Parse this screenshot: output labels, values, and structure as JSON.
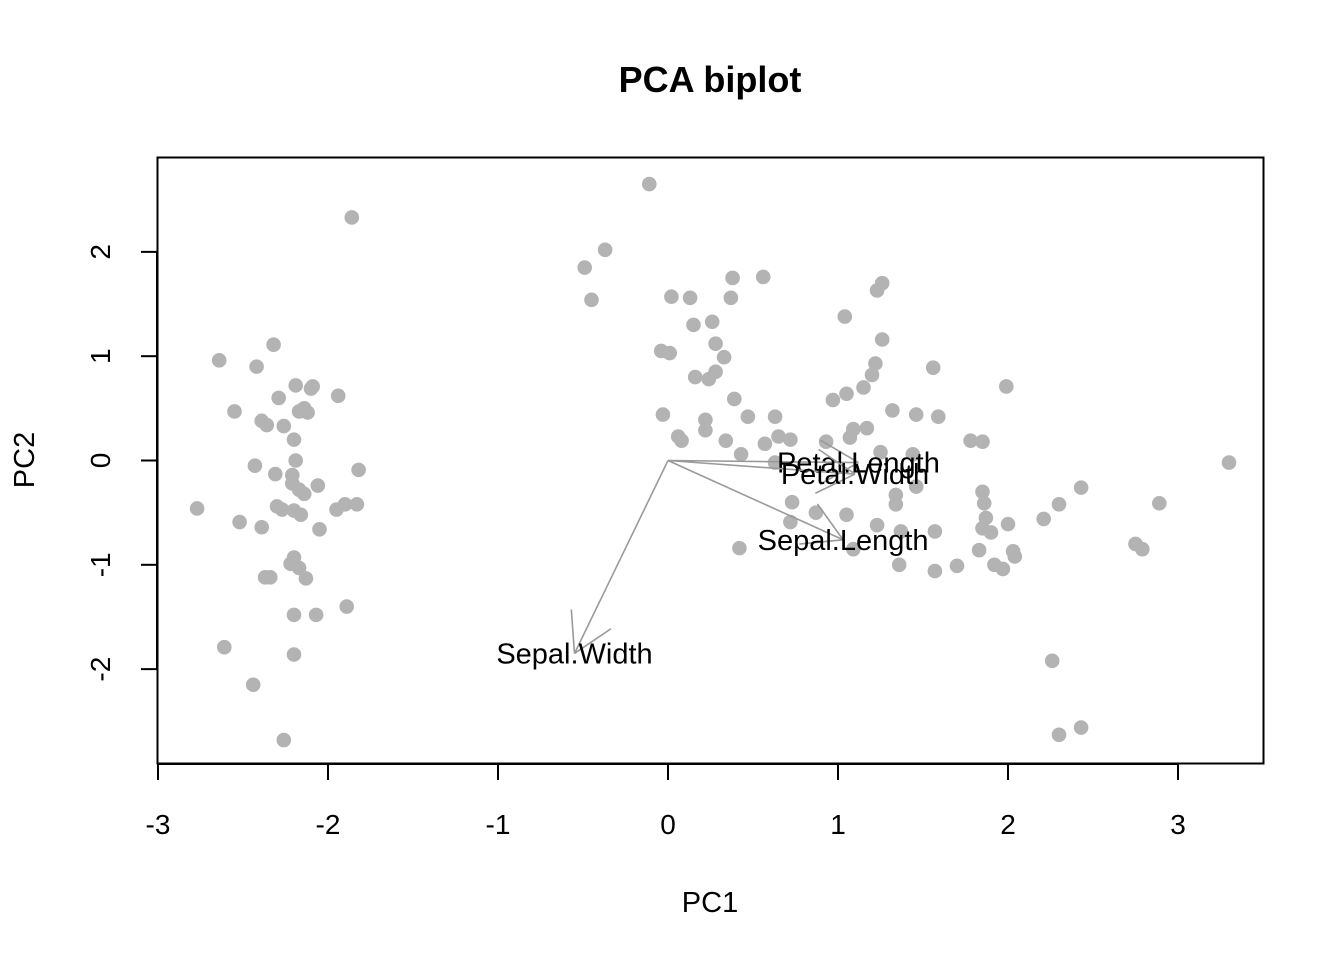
{
  "chart_data": {
    "type": "scatter",
    "title": "PCA biplot",
    "xlabel": "PC1",
    "ylabel": "PC2",
    "xlim": [
      -3,
      3.5
    ],
    "ylim": [
      -2.9,
      2.9
    ],
    "xticks": [
      "-3",
      "-2",
      "-1",
      "0",
      "1",
      "2",
      "3"
    ],
    "yticks": [
      "-2",
      "-1",
      "0",
      "1",
      "2"
    ],
    "point_color": "#b3b3b3",
    "arrow_color": "#9a9a9a",
    "grid": false,
    "legend": "none",
    "points": [
      [
        -1.86,
        2.33
      ],
      [
        -2.64,
        0.96
      ],
      [
        -2.42,
        0.9
      ],
      [
        -2.55,
        0.47
      ],
      [
        -2.32,
        1.11
      ],
      [
        -2.39,
        0.38
      ],
      [
        -2.36,
        0.34
      ],
      [
        -2.29,
        0.6
      ],
      [
        -2.19,
        0.72
      ],
      [
        -2.17,
        0.47
      ],
      [
        -2.1,
        0.69
      ],
      [
        -2.09,
        0.71
      ],
      [
        -2.12,
        0.46
      ],
      [
        -2.14,
        0.5
      ],
      [
        -1.94,
        0.62
      ],
      [
        -2.2,
        0.2
      ],
      [
        -2.26,
        0.33
      ],
      [
        -2.43,
        -0.05
      ],
      [
        -2.31,
        -0.13
      ],
      [
        -2.19,
        0.0
      ],
      [
        -2.21,
        -0.14
      ],
      [
        -2.21,
        -0.22
      ],
      [
        -2.17,
        -0.28
      ],
      [
        -2.14,
        -0.32
      ],
      [
        -2.16,
        -0.52
      ],
      [
        -2.27,
        -0.47
      ],
      [
        -2.3,
        -0.44
      ],
      [
        -2.2,
        -0.48
      ],
      [
        -2.06,
        -0.24
      ],
      [
        -2.05,
        -0.66
      ],
      [
        -1.95,
        -0.47
      ],
      [
        -1.9,
        -0.42
      ],
      [
        -1.83,
        -0.42
      ],
      [
        -1.82,
        -0.09
      ],
      [
        -2.77,
        -0.46
      ],
      [
        -2.52,
        -0.59
      ],
      [
        -2.39,
        -0.64
      ],
      [
        -2.2,
        -0.93
      ],
      [
        -2.22,
        -0.99
      ],
      [
        -2.17,
        -1.03
      ],
      [
        -2.13,
        -1.13
      ],
      [
        -2.37,
        -1.12
      ],
      [
        -2.34,
        -1.12
      ],
      [
        -2.2,
        -1.48
      ],
      [
        -2.07,
        -1.48
      ],
      [
        -1.89,
        -1.4
      ],
      [
        -2.61,
        -1.79
      ],
      [
        -2.2,
        -1.86
      ],
      [
        -2.44,
        -2.15
      ],
      [
        -2.26,
        -2.68
      ],
      [
        -0.11,
        2.65
      ],
      [
        -0.37,
        2.02
      ],
      [
        -0.49,
        1.85
      ],
      [
        -0.45,
        1.54
      ],
      [
        0.02,
        1.57
      ],
      [
        0.13,
        1.56
      ],
      [
        0.38,
        1.75
      ],
      [
        0.56,
        1.76
      ],
      [
        0.37,
        1.56
      ],
      [
        0.15,
        1.3
      ],
      [
        0.26,
        1.33
      ],
      [
        0.28,
        1.12
      ],
      [
        0.33,
        0.99
      ],
      [
        -0.04,
        1.05
      ],
      [
        0.01,
        1.03
      ],
      [
        0.16,
        0.8
      ],
      [
        0.24,
        0.78
      ],
      [
        0.28,
        0.85
      ],
      [
        0.39,
        0.59
      ],
      [
        0.47,
        0.42
      ],
      [
        0.63,
        0.42
      ],
      [
        -0.03,
        0.44
      ],
      [
        0.22,
        0.39
      ],
      [
        0.22,
        0.29
      ],
      [
        0.06,
        0.23
      ],
      [
        0.08,
        0.19
      ],
      [
        0.34,
        0.19
      ],
      [
        0.43,
        0.06
      ],
      [
        0.57,
        0.16
      ],
      [
        0.65,
        0.23
      ],
      [
        0.72,
        0.2
      ],
      [
        0.63,
        -0.02
      ],
      [
        1.04,
        1.38
      ],
      [
        1.23,
        1.63
      ],
      [
        1.26,
        1.7
      ],
      [
        1.26,
        1.16
      ],
      [
        1.22,
        0.93
      ],
      [
        1.2,
        0.82
      ],
      [
        1.15,
        0.7
      ],
      [
        1.05,
        0.64
      ],
      [
        0.97,
        0.58
      ],
      [
        1.56,
        0.89
      ],
      [
        1.32,
        0.48
      ],
      [
        1.46,
        0.44
      ],
      [
        1.59,
        0.42
      ],
      [
        1.09,
        0.3
      ],
      [
        1.17,
        0.31
      ],
      [
        1.07,
        0.22
      ],
      [
        0.93,
        0.18
      ],
      [
        1.25,
        0.08
      ],
      [
        1.44,
        0.06
      ],
      [
        1.78,
        0.19
      ],
      [
        1.85,
        0.18
      ],
      [
        1.99,
        0.71
      ],
      [
        1.46,
        -0.25
      ],
      [
        1.34,
        -0.33
      ],
      [
        1.34,
        -0.42
      ],
      [
        0.73,
        -0.4
      ],
      [
        0.87,
        -0.5
      ],
      [
        1.05,
        -0.52
      ],
      [
        1.23,
        -0.62
      ],
      [
        1.37,
        -0.68
      ],
      [
        1.57,
        -0.68
      ],
      [
        0.72,
        -0.59
      ],
      [
        0.42,
        -0.84
      ],
      [
        1.09,
        -0.85
      ],
      [
        1.36,
        -1.0
      ],
      [
        1.57,
        -1.06
      ],
      [
        1.7,
        -1.01
      ],
      [
        1.85,
        -0.3
      ],
      [
        1.86,
        -0.41
      ],
      [
        1.87,
        -0.55
      ],
      [
        1.85,
        -0.65
      ],
      [
        1.9,
        -0.69
      ],
      [
        1.83,
        -0.86
      ],
      [
        2.0,
        -0.61
      ],
      [
        2.03,
        -0.87
      ],
      [
        2.04,
        -0.92
      ],
      [
        1.92,
        -1.0
      ],
      [
        1.97,
        -1.04
      ],
      [
        2.21,
        -0.56
      ],
      [
        2.3,
        -0.42
      ],
      [
        2.43,
        -0.26
      ],
      [
        2.75,
        -0.8
      ],
      [
        2.79,
        -0.85
      ],
      [
        2.89,
        -0.41
      ],
      [
        3.3,
        -0.02
      ],
      [
        2.26,
        -1.92
      ],
      [
        2.3,
        -2.63
      ],
      [
        2.43,
        -2.56
      ]
    ],
    "loadings": [
      {
        "label": "Petal.Length",
        "x": 1.12,
        "y": -0.02
      },
      {
        "label": "Petal.Width",
        "x": 1.1,
        "y": -0.13
      },
      {
        "label": "Sepal.Length",
        "x": 1.03,
        "y": -0.76
      },
      {
        "label": "Sepal.Width",
        "x": -0.55,
        "y": -1.85
      }
    ]
  }
}
